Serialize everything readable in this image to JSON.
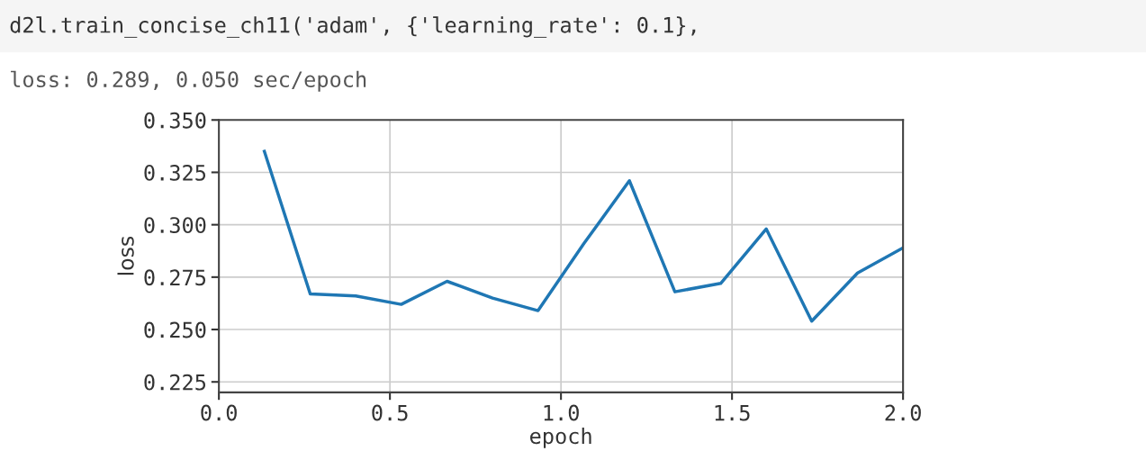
{
  "chart_data": {
    "type": "line",
    "title": "d2l.train_concise_ch11('adam', {'learning_rate': 0.1},",
    "subtitle": "loss: 0.289, 0.050 sec/epoch",
    "xlabel": "epoch",
    "ylabel": "loss",
    "x": [
      0.133,
      0.267,
      0.4,
      0.533,
      0.667,
      0.8,
      0.933,
      1.067,
      1.2,
      1.333,
      1.467,
      1.6,
      1.733,
      1.867,
      2.0
    ],
    "series": [
      {
        "color": "#1f77b4",
        "values": [
          0.335,
          0.267,
          0.266,
          0.262,
          0.273,
          0.265,
          0.259,
          0.291,
          0.321,
          0.268,
          0.272,
          0.298,
          0.254,
          0.277,
          0.289
        ]
      }
    ],
    "xlim": [
      0,
      2
    ],
    "xticks": [
      {
        "value": 0,
        "label": "0.0"
      },
      {
        "value": 0.5,
        "label": "0.5"
      },
      {
        "value": 1,
        "label": "1.0"
      },
      {
        "value": 1.5,
        "label": "1.5"
      },
      {
        "value": 2,
        "label": "2.0"
      }
    ],
    "ylim": [
      0.22,
      0.35
    ],
    "yticks": [
      {
        "value": 0.225,
        "label": "0.225"
      },
      {
        "value": 0.25,
        "label": "0.250"
      },
      {
        "value": 0.275,
        "label": "0.275"
      },
      {
        "value": 0.3,
        "label": "0.300"
      },
      {
        "value": 0.325,
        "label": "0.325"
      },
      {
        "value": 0.35,
        "label": "0.350"
      }
    ],
    "grid": true,
    "legend": false
  }
}
